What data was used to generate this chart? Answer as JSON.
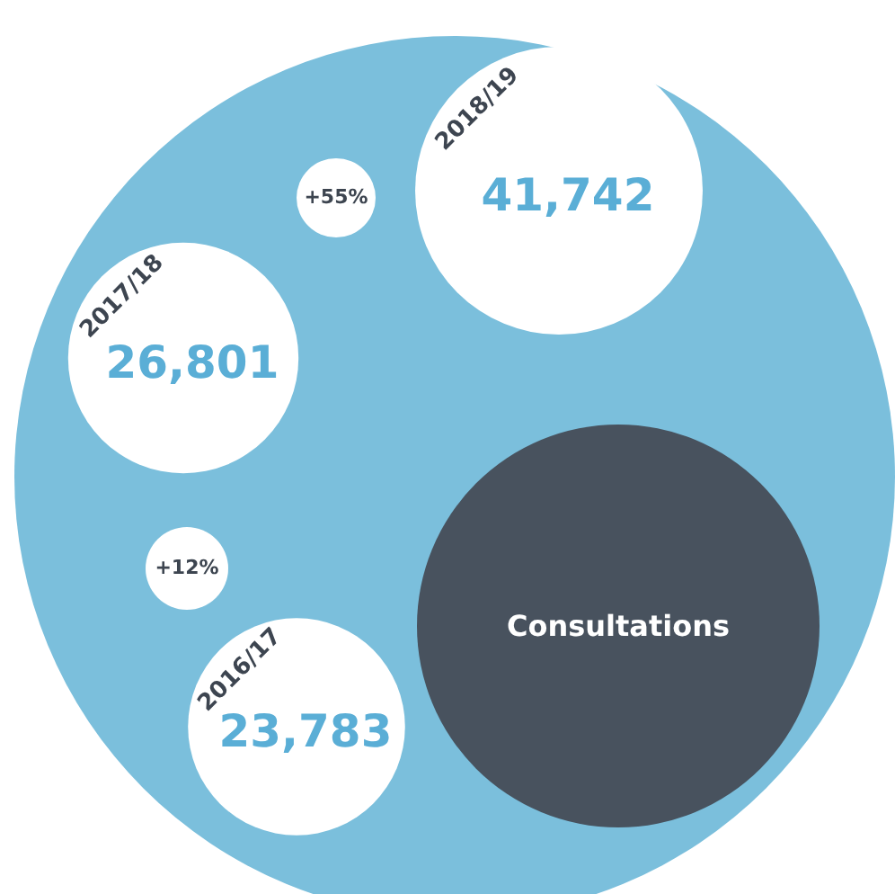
{
  "chart_data": {
    "type": "other",
    "title": "Consultations",
    "categories": [
      "2016/17",
      "2017/18",
      "2018/19"
    ],
    "values": [
      23783,
      26801,
      41742
    ],
    "value_labels": [
      "23,783",
      "26,801",
      "41,742"
    ],
    "annotations": [
      "+12%",
      "+55%"
    ],
    "colors": [
      "#ffffff",
      "#ffffff",
      "#ffffff"
    ]
  }
}
